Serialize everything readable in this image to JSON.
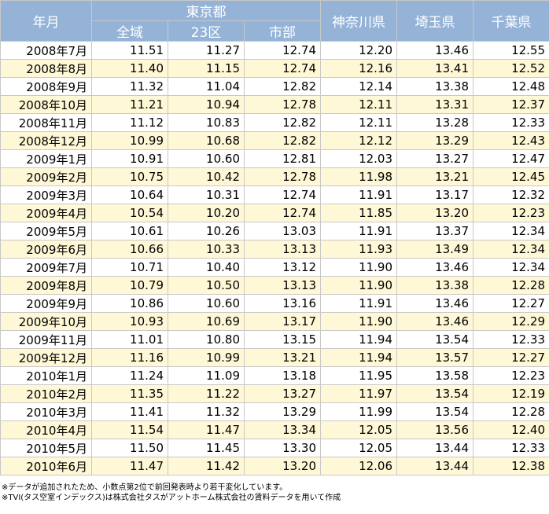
{
  "chart_data": {
    "type": "table",
    "header": {
      "month": "年月",
      "tokyo_group": "東京都",
      "tokyo_sub": [
        "全域",
        "23区",
        "市部"
      ],
      "prefectures": [
        "神奈川県",
        "埼玉県",
        "千葉県"
      ]
    },
    "columns": [
      "年月",
      "東京都 全域",
      "東京都 23区",
      "東京都 市部",
      "神奈川県",
      "埼玉県",
      "千葉県"
    ],
    "rows": [
      [
        "2008年7月",
        "11.51",
        "11.27",
        "12.74",
        "12.20",
        "13.46",
        "12.55"
      ],
      [
        "2008年8月",
        "11.40",
        "11.15",
        "12.74",
        "12.16",
        "13.41",
        "12.52"
      ],
      [
        "2008年9月",
        "11.32",
        "11.04",
        "12.82",
        "12.14",
        "13.38",
        "12.48"
      ],
      [
        "2008年10月",
        "11.21",
        "10.94",
        "12.78",
        "12.11",
        "13.31",
        "12.37"
      ],
      [
        "2008年11月",
        "11.12",
        "10.83",
        "12.82",
        "12.11",
        "13.28",
        "12.33"
      ],
      [
        "2008年12月",
        "10.99",
        "10.68",
        "12.82",
        "12.12",
        "13.29",
        "12.43"
      ],
      [
        "2009年1月",
        "10.91",
        "10.60",
        "12.81",
        "12.03",
        "13.27",
        "12.47"
      ],
      [
        "2009年2月",
        "10.75",
        "10.42",
        "12.78",
        "11.98",
        "13.21",
        "12.45"
      ],
      [
        "2009年3月",
        "10.64",
        "10.31",
        "12.74",
        "11.91",
        "13.17",
        "12.32"
      ],
      [
        "2009年4月",
        "10.54",
        "10.20",
        "12.74",
        "11.85",
        "13.20",
        "12.23"
      ],
      [
        "2009年5月",
        "10.61",
        "10.26",
        "13.03",
        "11.91",
        "13.37",
        "12.34"
      ],
      [
        "2009年6月",
        "10.66",
        "10.33",
        "13.13",
        "11.93",
        "13.49",
        "12.34"
      ],
      [
        "2009年7月",
        "10.71",
        "10.40",
        "13.12",
        "11.90",
        "13.46",
        "12.34"
      ],
      [
        "2009年8月",
        "10.79",
        "10.50",
        "13.13",
        "11.90",
        "13.38",
        "12.28"
      ],
      [
        "2009年9月",
        "10.86",
        "10.60",
        "13.16",
        "11.91",
        "13.46",
        "12.27"
      ],
      [
        "2009年10月",
        "10.93",
        "10.69",
        "13.17",
        "11.90",
        "13.46",
        "12.29"
      ],
      [
        "2009年11月",
        "11.01",
        "10.80",
        "13.15",
        "11.94",
        "13.54",
        "12.33"
      ],
      [
        "2009年12月",
        "11.16",
        "10.99",
        "13.21",
        "11.94",
        "13.57",
        "12.27"
      ],
      [
        "2010年1月",
        "11.24",
        "11.09",
        "13.18",
        "11.95",
        "13.58",
        "12.23"
      ],
      [
        "2010年2月",
        "11.35",
        "11.22",
        "13.27",
        "11.97",
        "13.54",
        "12.19"
      ],
      [
        "2010年3月",
        "11.41",
        "11.32",
        "13.29",
        "11.99",
        "13.54",
        "12.28"
      ],
      [
        "2010年4月",
        "11.54",
        "11.47",
        "13.34",
        "12.05",
        "13.56",
        "12.40"
      ],
      [
        "2010年5月",
        "11.50",
        "11.45",
        "13.30",
        "12.05",
        "13.44",
        "12.33"
      ],
      [
        "2010年6月",
        "11.47",
        "11.42",
        "13.20",
        "12.06",
        "13.44",
        "12.38"
      ]
    ]
  },
  "notes": [
    "※データが追加されたため、小数点第2位で前回発表時より若干変化しています。",
    "※TVI(タス空室インデックス)は株式会社タスがアットホーム株式会社の賃料データを用いて作成"
  ],
  "colors": {
    "header_bg": "#95b3d7",
    "header_text": "#ffffff",
    "alt_row_bg": "#fff8d6",
    "border": "#c8c8c8"
  }
}
